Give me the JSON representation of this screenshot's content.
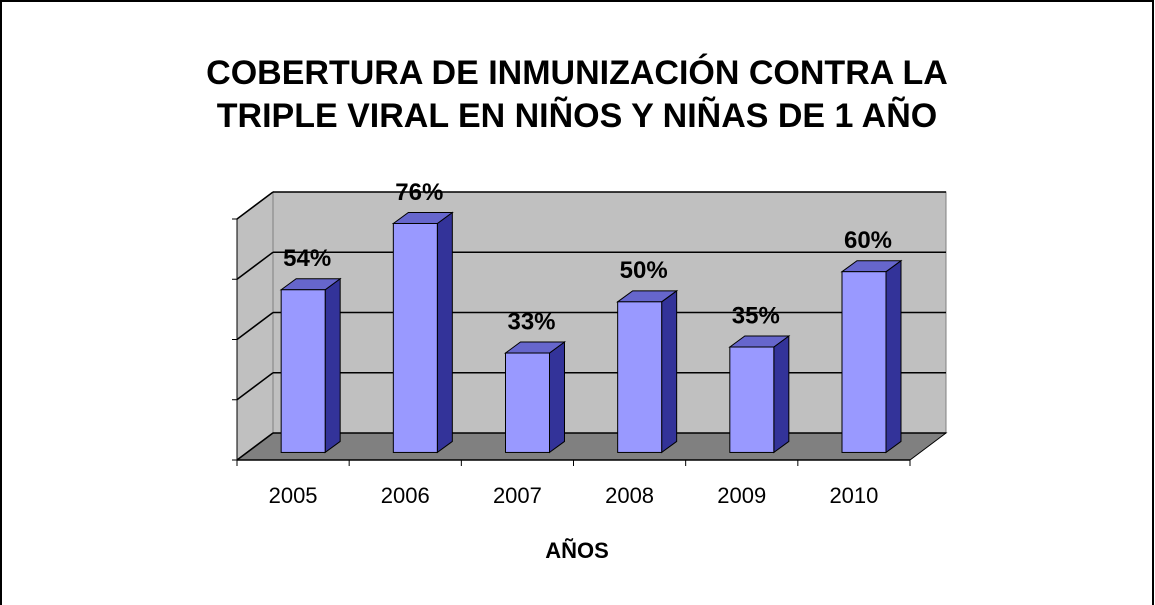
{
  "chart_data": {
    "type": "bar3d",
    "title": "COBERTURA DE INMUNIZACIÓN CONTRA LA",
    "subtitle": "TRIPLE VIRAL EN NIÑOS Y NIÑAS DE 1 AÑO",
    "x_label": "AÑOS",
    "categories": [
      "2005",
      "2006",
      "2007",
      "2008",
      "2009",
      "2010"
    ],
    "values": [
      54,
      76,
      33,
      50,
      35,
      60
    ],
    "value_labels": [
      "54%",
      "76%",
      "33%",
      "50%",
      "35%",
      "60%"
    ],
    "color": "#9999ff",
    "ylim": [
      0,
      80
    ],
    "yticks": [
      0,
      20,
      40,
      60,
      80
    ],
    "grid": true
  }
}
